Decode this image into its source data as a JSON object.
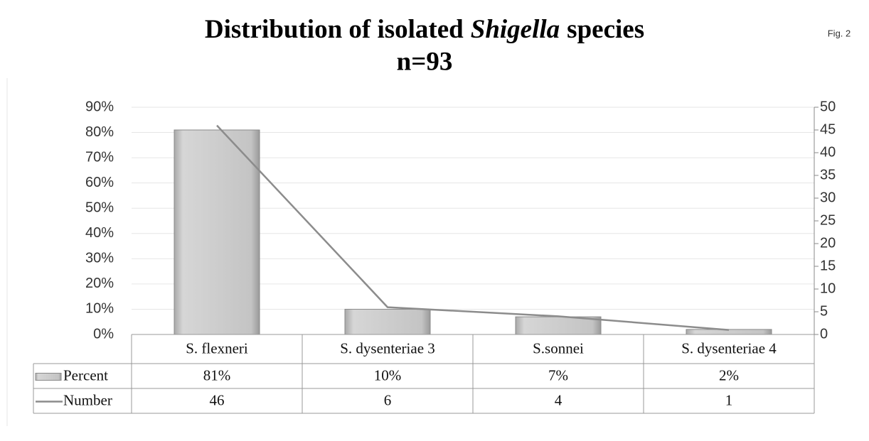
{
  "chart_data": {
    "type": "bar",
    "title": [
      "Distribution of isolated",
      "Shigella",
      "species"
    ],
    "subtitle": "n=93",
    "annotation": "Fig. 2",
    "categories": [
      "S. flexneri",
      "S. dysenteriae 3",
      "S.sonnei",
      "S. dysenteriae 4"
    ],
    "series": [
      {
        "name": "Percent",
        "type": "bar",
        "color": "#c4c4c4",
        "values": [
          81,
          10,
          7,
          2
        ],
        "value_labels": [
          "81%",
          "10%",
          "7%",
          "2%"
        ]
      },
      {
        "name": "Number",
        "type": "line",
        "axis": "y2",
        "color": "#8c8c8c",
        "values": [
          46,
          6,
          4,
          1
        ]
      }
    ],
    "ylim": [
      0,
      90
    ],
    "yticks": [
      {
        "value": 0,
        "label": "0%"
      },
      {
        "value": 10,
        "label": "10%"
      },
      {
        "value": 20,
        "label": "20%"
      },
      {
        "value": 30,
        "label": "30%"
      },
      {
        "value": 40,
        "label": "40%"
      },
      {
        "value": 50,
        "label": "50%"
      },
      {
        "value": 60,
        "label": "60%"
      },
      {
        "value": 70,
        "label": "70%"
      },
      {
        "value": 80,
        "label": "80%"
      },
      {
        "value": 90,
        "label": "90%"
      }
    ],
    "y2lim": [
      0,
      50
    ],
    "y2ticks": [
      0,
      5,
      10,
      15,
      20,
      25,
      30,
      35,
      40,
      45,
      50
    ],
    "grid": true
  }
}
